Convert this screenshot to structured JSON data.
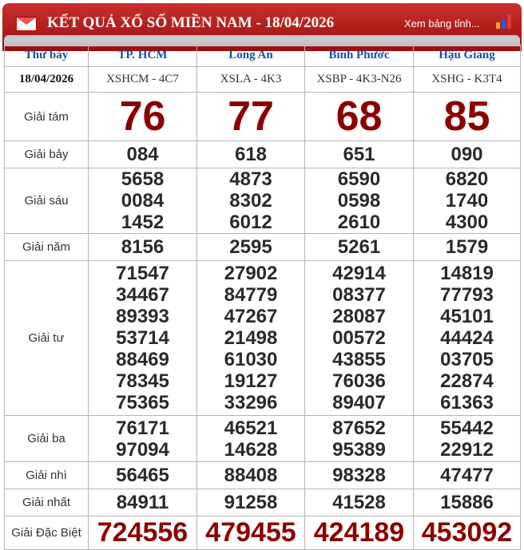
{
  "header": {
    "title": "KẾT QUẢ XỔ SỐ MIỀN NAM - 18/04/2026",
    "link": "Xem bảng tỉnh...",
    "icon_left": "mail-icon",
    "icon_right": "bar-chart-icon",
    "accent": "#b71c1c"
  },
  "columns": [
    "Thứ bảy",
    "TP. HCM",
    "Long An",
    "Bình Phước",
    "Hậu Giang"
  ],
  "codes": [
    "18/04/2026",
    "XSHCM - 4C7",
    "XSLA - 4K3",
    "XSBP - 4K3-N26",
    "XSHG - K3T4"
  ],
  "prizes": [
    {
      "label": "Giải tám",
      "cls": "big",
      "values": [
        [
          "76"
        ],
        [
          "77"
        ],
        [
          "68"
        ],
        [
          "85"
        ]
      ]
    },
    {
      "label": "Giải bảy",
      "cls": "n",
      "values": [
        [
          "084"
        ],
        [
          "618"
        ],
        [
          "651"
        ],
        [
          "090"
        ]
      ]
    },
    {
      "label": "Giải sáu",
      "cls": "n",
      "values": [
        [
          "5658",
          "0084",
          "1452"
        ],
        [
          "4873",
          "8302",
          "6012"
        ],
        [
          "6590",
          "0598",
          "2610"
        ],
        [
          "6820",
          "1740",
          "4300"
        ]
      ]
    },
    {
      "label": "Giải năm",
      "cls": "n",
      "values": [
        [
          "8156"
        ],
        [
          "2595"
        ],
        [
          "5261"
        ],
        [
          "1579"
        ]
      ]
    },
    {
      "label": "Giải tư",
      "cls": "n",
      "values": [
        [
          "71547",
          "34467",
          "89393",
          "53714",
          "88469",
          "78345",
          "75365"
        ],
        [
          "27902",
          "84779",
          "47267",
          "21498",
          "61030",
          "19127",
          "33296"
        ],
        [
          "42914",
          "08377",
          "28087",
          "00572",
          "43855",
          "76036",
          "89407"
        ],
        [
          "14819",
          "77793",
          "45101",
          "44424",
          "03705",
          "22874",
          "61363"
        ]
      ]
    },
    {
      "label": "Giải ba",
      "cls": "n",
      "values": [
        [
          "76171",
          "97094"
        ],
        [
          "46521",
          "14628"
        ],
        [
          "87652",
          "95389"
        ],
        [
          "55442",
          "22912"
        ]
      ]
    },
    {
      "label": "Giải nhì",
      "cls": "n",
      "values": [
        [
          "56465"
        ],
        [
          "88408"
        ],
        [
          "98328"
        ],
        [
          "47477"
        ]
      ]
    },
    {
      "label": "Giải nhất",
      "cls": "n",
      "values": [
        [
          "84911"
        ],
        [
          "91258"
        ],
        [
          "41528"
        ],
        [
          "15886"
        ]
      ]
    },
    {
      "label": "Giải Đặc Biệt",
      "cls": "db",
      "values": [
        [
          "724556"
        ],
        [
          "479455"
        ],
        [
          "424189"
        ],
        [
          "453092"
        ]
      ]
    }
  ]
}
